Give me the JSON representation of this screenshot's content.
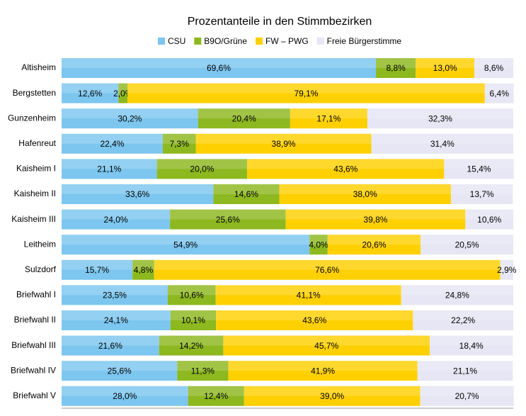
{
  "chart_data": {
    "type": "stacked-bar-horizontal",
    "title": "Prozentanteile in den Stimmbezirken",
    "categories": [
      "Altisheim",
      "Bergstetten",
      "Gunzenheim",
      "Hafenreut",
      "Kaisheim I",
      "Kaisheim II",
      "Kaisheim III",
      "Leitheim",
      "Sulzdorf",
      "Briefwahl I",
      "Briefwahl II",
      "Briefwahl III",
      "Briefwahl IV",
      "Briefwahl V"
    ],
    "xlim": [
      0,
      100
    ],
    "legend": "top",
    "series": [
      {
        "name": "CSU",
        "color": "#7cc6ef",
        "values": [
          69.6,
          12.6,
          30.2,
          22.4,
          21.1,
          33.6,
          24.0,
          54.9,
          15.7,
          23.5,
          24.1,
          21.6,
          25.6,
          28.0
        ],
        "value_labels": [
          "69,6%",
          "12,6%",
          "30,2%",
          "22,4%",
          "21,1%",
          "33,6%",
          "24,0%",
          "54,9%",
          "15,7%",
          "23,5%",
          "24,1%",
          "21,6%",
          "25,6%",
          "28,0%"
        ]
      },
      {
        "name": "B9O/Grüne",
        "color": "#8db81f",
        "values": [
          8.8,
          2.0,
          20.4,
          7.3,
          20.0,
          14.6,
          25.6,
          4.0,
          4.8,
          10.6,
          10.1,
          14.2,
          11.3,
          12.4
        ],
        "value_labels": [
          "8,8%",
          "2,0%",
          "20,4%",
          "7,3%",
          "20,0%",
          "14,6%",
          "25,6%",
          "4,0%",
          "4,8%",
          "10,6%",
          "10,1%",
          "14,2%",
          "11,3%",
          "12,4%"
        ]
      },
      {
        "name": "FW – PWG",
        "color": "#ffd000",
        "values": [
          13.0,
          79.1,
          17.1,
          38.9,
          43.6,
          38.0,
          39.8,
          20.6,
          76.6,
          41.1,
          43.6,
          45.7,
          41.9,
          39.0
        ],
        "value_labels": [
          "13,0%",
          "79,1%",
          "17,1%",
          "38,9%",
          "43,6%",
          "38,0%",
          "39,8%",
          "20,6%",
          "76,6%",
          "41,1%",
          "43,6%",
          "45,7%",
          "41,9%",
          "39,0%"
        ]
      },
      {
        "name": "Freie Bürgerstimme",
        "color": "#e6e6f4",
        "values": [
          8.6,
          6.4,
          32.3,
          31.4,
          15.4,
          13.7,
          10.6,
          20.5,
          2.9,
          24.8,
          22.2,
          18.4,
          21.1,
          20.7
        ],
        "value_labels": [
          "8,6%",
          "6,4%",
          "32,3%",
          "31,4%",
          "15,4%",
          "13,7%",
          "10,6%",
          "20,5%",
          "2,9%",
          "24,8%",
          "22,2%",
          "18,4%",
          "21,1%",
          "20,7%"
        ]
      }
    ]
  }
}
